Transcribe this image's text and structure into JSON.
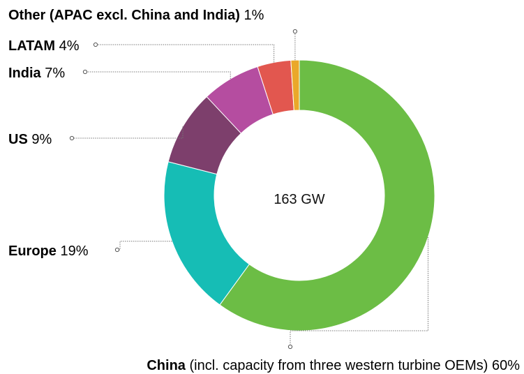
{
  "chart_data": {
    "type": "pie",
    "variant": "donut",
    "center_label": "163 GW",
    "slices": [
      {
        "name": "China",
        "note": "(incl. capacity from three western turbine OEMs)",
        "pct_label": "60%",
        "value": 60,
        "color": "#6cbd45"
      },
      {
        "name": "Europe",
        "note": "",
        "pct_label": "19%",
        "value": 19,
        "color": "#16bdb5"
      },
      {
        "name": "US",
        "note": "",
        "pct_label": "9%",
        "value": 9,
        "color": "#7d3f6c"
      },
      {
        "name": "India",
        "note": "",
        "pct_label": "7%",
        "value": 7,
        "color": "#b54da0"
      },
      {
        "name": "LATAM",
        "note": "",
        "pct_label": "4%",
        "value": 4,
        "color": "#e2574f"
      },
      {
        "name": "Other (APAC excl. China and India)",
        "note": "",
        "pct_label": "1%",
        "value": 1,
        "color": "#eaa82a"
      }
    ]
  }
}
